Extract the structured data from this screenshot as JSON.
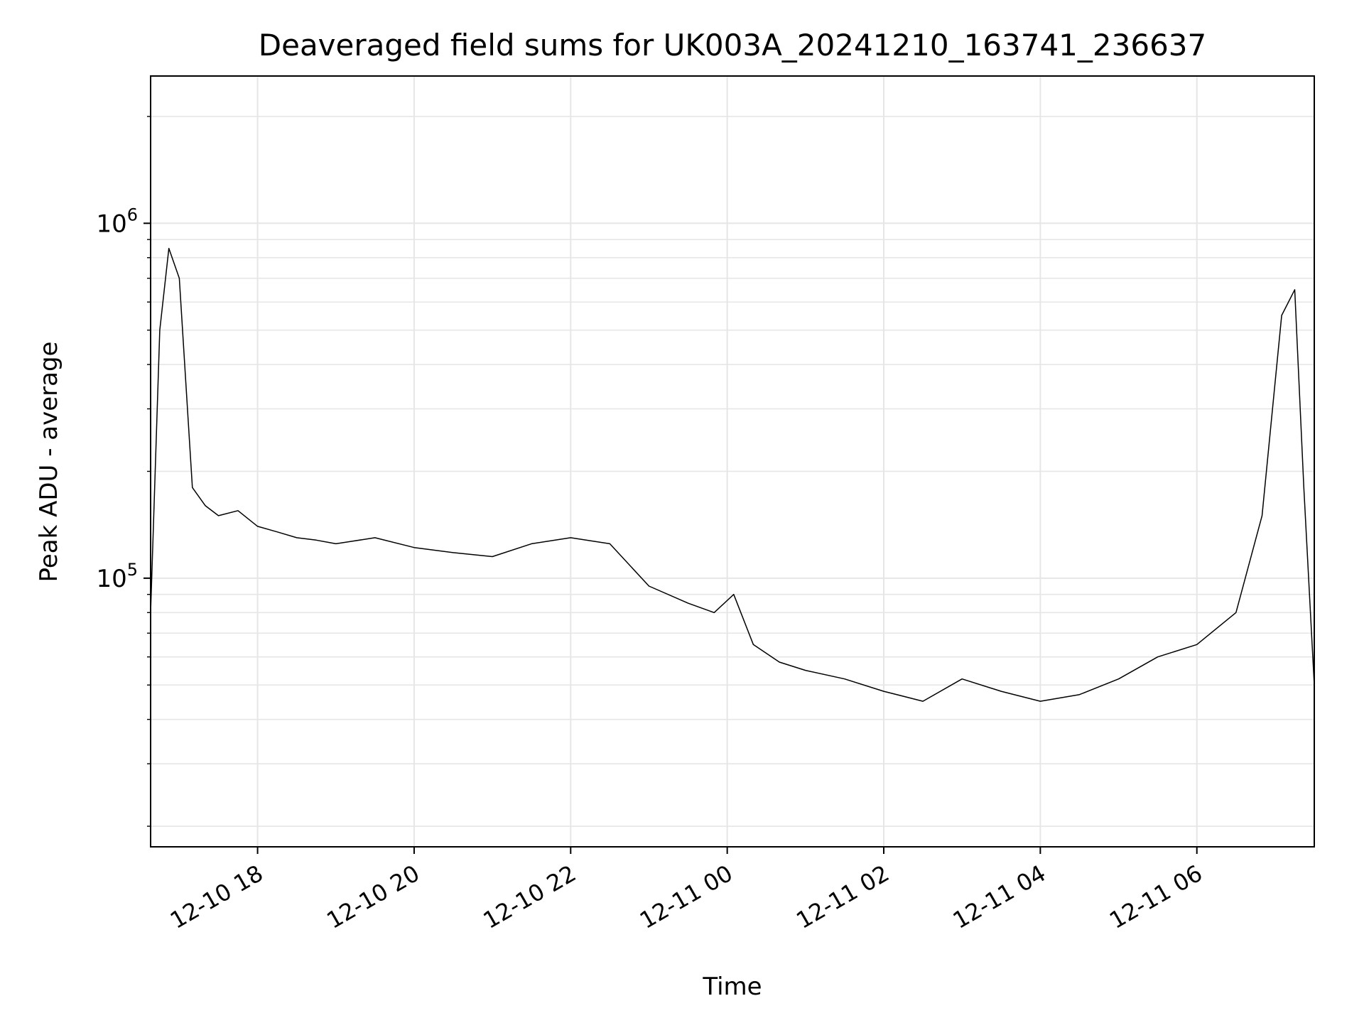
{
  "chart_data": {
    "type": "line",
    "title": "Deaveraged field sums for UK003A_20241210_163741_236637",
    "xlabel": "Time",
    "ylabel": "Peak ADU - average",
    "yscale": "log",
    "ylim": [
      17500,
      2600000
    ],
    "xlim": [
      "2024-12-10 16:38",
      "2024-12-11 07:30"
    ],
    "grid": true,
    "line_color": "#000000",
    "grid_color": "#e6e6e6",
    "x_ticks": [
      "12-10 18",
      "12-10 20",
      "12-10 22",
      "12-11 00",
      "12-11 02",
      "12-11 04",
      "12-11 06"
    ],
    "y_ticks": [
      {
        "base": "10",
        "exp": "5",
        "value": 100000
      },
      {
        "base": "10",
        "exp": "6",
        "value": 1000000
      }
    ],
    "series": [
      {
        "x": [
          "2024-12-10 16:38",
          "2024-12-10 16:45",
          "2024-12-10 16:52",
          "2024-12-10 17:00",
          "2024-12-10 17:10",
          "2024-12-10 17:20",
          "2024-12-10 17:30",
          "2024-12-10 17:45",
          "2024-12-10 18:00",
          "2024-12-10 18:15",
          "2024-12-10 18:30",
          "2024-12-10 18:45",
          "2024-12-10 19:00",
          "2024-12-10 19:30",
          "2024-12-10 20:00",
          "2024-12-10 20:30",
          "2024-12-10 21:00",
          "2024-12-10 21:30",
          "2024-12-10 22:00",
          "2024-12-10 22:30",
          "2024-12-10 23:00",
          "2024-12-10 23:30",
          "2024-12-10 23:50",
          "2024-12-11 00:05",
          "2024-12-11 00:20",
          "2024-12-11 00:40",
          "2024-12-11 01:00",
          "2024-12-11 01:30",
          "2024-12-11 02:00",
          "2024-12-11 02:30",
          "2024-12-11 03:00",
          "2024-12-11 03:30",
          "2024-12-11 04:00",
          "2024-12-11 04:30",
          "2024-12-11 05:00",
          "2024-12-11 05:30",
          "2024-12-11 06:00",
          "2024-12-11 06:30",
          "2024-12-11 06:50",
          "2024-12-11 07:05",
          "2024-12-11 07:15",
          "2024-12-11 07:22",
          "2024-12-11 07:30"
        ],
        "y": [
          80000,
          500000,
          850000,
          700000,
          180000,
          160000,
          150000,
          155000,
          140000,
          135000,
          130000,
          128000,
          125000,
          130000,
          122000,
          118000,
          115000,
          125000,
          130000,
          125000,
          95000,
          85000,
          80000,
          90000,
          65000,
          58000,
          55000,
          52000,
          48000,
          45000,
          52000,
          48000,
          45000,
          47000,
          52000,
          60000,
          65000,
          80000,
          150000,
          550000,
          650000,
          180000,
          50000
        ]
      }
    ]
  }
}
